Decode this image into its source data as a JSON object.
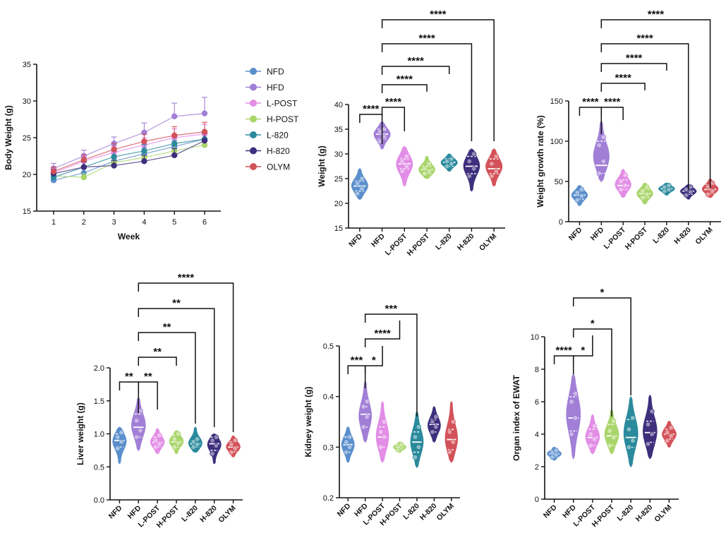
{
  "palette": {
    "NFD": "#5b8fcc",
    "HFD": "#a17fd6",
    "L-POST": "#e28de6",
    "H-POST": "#a9d56a",
    "L-820": "#2b8a9c",
    "H-820": "#3e2f7d",
    "OLYM": "#d3525a"
  },
  "chart_data": [
    {
      "id": "body-weight",
      "type": "line",
      "title": "",
      "xlabel": "Week",
      "ylabel": "Body Weight (g)",
      "x": [
        1,
        2,
        3,
        4,
        5,
        6
      ],
      "xticks": [
        "1",
        "2",
        "3",
        "4",
        "5",
        "6"
      ],
      "ylim": [
        15,
        35
      ],
      "yticks": [
        "15",
        "20",
        "25",
        "30",
        "35"
      ],
      "legend": [
        "NFD",
        "HFD",
        "L-POST",
        "H-POST",
        "L-820",
        "H-820",
        "OLYM"
      ],
      "series": [
        {
          "name": "NFD",
          "values": [
            19.2,
            20.2,
            21.8,
            22.8,
            23.8,
            24.8
          ],
          "err": [
            0.5,
            0.6,
            0.7,
            0.8,
            0.8,
            0.8
          ]
        },
        {
          "name": "HFD",
          "values": [
            20.8,
            22.5,
            24.2,
            25.7,
            27.9,
            28.3
          ],
          "err": [
            0.7,
            0.8,
            0.9,
            1.3,
            1.8,
            2.2
          ]
        },
        {
          "name": "L-POST",
          "values": [
            20.2,
            21.8,
            23.0,
            24.0,
            25.0,
            25.5
          ],
          "err": [
            0.6,
            0.7,
            0.8,
            1.0,
            1.2,
            1.3
          ]
        },
        {
          "name": "H-POST",
          "values": [
            19.8,
            19.6,
            21.6,
            22.3,
            23.2,
            24.0
          ],
          "err": [
            0.5,
            0.5,
            0.6,
            0.7,
            0.8,
            0.8
          ]
        },
        {
          "name": "L-820",
          "values": [
            19.6,
            21.0,
            22.4,
            23.2,
            24.2,
            24.8
          ],
          "err": [
            0.6,
            0.7,
            0.8,
            0.9,
            1.0,
            1.0
          ]
        },
        {
          "name": "H-820",
          "values": [
            20.1,
            21.0,
            21.2,
            21.8,
            22.6,
            24.6
          ],
          "err": [
            0.6,
            0.7,
            0.7,
            0.8,
            0.9,
            1.0
          ]
        },
        {
          "name": "OLYM",
          "values": [
            20.4,
            22.0,
            23.4,
            24.5,
            25.3,
            25.8
          ],
          "err": [
            0.6,
            0.7,
            0.8,
            1.0,
            1.2,
            1.3
          ]
        }
      ]
    },
    {
      "id": "weight",
      "type": "violin",
      "ylabel": "Weight (g)",
      "categories": [
        "NFD",
        "HFD",
        "L-POST",
        "H-POST",
        "L-820",
        "H-820",
        "OLYM"
      ],
      "ylim": [
        15,
        40
      ],
      "yticks": [
        "15",
        "20",
        "25",
        "30",
        "35",
        "40"
      ],
      "groups": [
        {
          "median": 23.5,
          "q1": 22.5,
          "q3": 24.5,
          "min": 20.8,
          "max": 27.0,
          "points": [
            22.0,
            23.0,
            24.0,
            25.0
          ]
        },
        {
          "median": 34.0,
          "q1": 33.0,
          "q3": 35.0,
          "min": 31.0,
          "max": 36.5,
          "points": [
            32.5,
            33.5,
            34.5,
            35.0
          ]
        },
        {
          "median": 28.0,
          "q1": 27.0,
          "q3": 29.0,
          "min": 23.5,
          "max": 31.5,
          "points": [
            26.5,
            27.5,
            28.5,
            29.5
          ]
        },
        {
          "median": 26.8,
          "q1": 26.0,
          "q3": 27.5,
          "min": 25.0,
          "max": 29.5,
          "points": [
            26.0,
            26.5,
            27.0,
            28.0
          ]
        },
        {
          "median": 28.3,
          "q1": 27.5,
          "q3": 29.0,
          "min": 26.5,
          "max": 30.0,
          "points": [
            27.5,
            28.0,
            28.5,
            29.0
          ]
        },
        {
          "median": 27.5,
          "q1": 26.0,
          "q3": 29.5,
          "min": 22.5,
          "max": 31.0,
          "points": [
            25.5,
            27.0,
            28.5,
            30.0
          ]
        },
        {
          "median": 27.0,
          "q1": 26.0,
          "q3": 29.0,
          "min": 23.5,
          "max": 31.0,
          "points": [
            25.5,
            26.5,
            28.0,
            29.5
          ]
        }
      ],
      "comparisons": [
        {
          "a": 0,
          "b": 1,
          "label": "****"
        },
        {
          "a": 1,
          "b": 2,
          "label": "****"
        },
        {
          "a": 1,
          "b": 3,
          "label": "****"
        },
        {
          "a": 1,
          "b": 4,
          "label": "****"
        },
        {
          "a": 1,
          "b": 5,
          "label": "****"
        },
        {
          "a": 1,
          "b": 6,
          "label": "****"
        }
      ]
    },
    {
      "id": "weight-growth",
      "type": "violin",
      "ylabel": "Weight growth rate (%)",
      "categories": [
        "NFD",
        "HFD",
        "L-POST",
        "H-POST",
        "L-820",
        "H-820",
        "OLYM"
      ],
      "ylim": [
        0,
        150
      ],
      "yticks": [
        "0",
        "50",
        "100",
        "150"
      ],
      "groups": [
        {
          "median": 33,
          "q1": 28,
          "q3": 38,
          "min": 20,
          "max": 45,
          "points": [
            27,
            32,
            36,
            40
          ]
        },
        {
          "median": 70,
          "q1": 60,
          "q3": 100,
          "min": 50,
          "max": 125,
          "points": [
            60,
            75,
            95,
            105
          ]
        },
        {
          "median": 45,
          "q1": 40,
          "q3": 52,
          "min": 30,
          "max": 65,
          "points": [
            40,
            45,
            50,
            58
          ]
        },
        {
          "median": 35,
          "q1": 30,
          "q3": 40,
          "min": 22,
          "max": 48,
          "points": [
            30,
            34,
            38,
            43
          ]
        },
        {
          "median": 41,
          "q1": 38,
          "q3": 44,
          "min": 33,
          "max": 48,
          "points": [
            38,
            40,
            43,
            45
          ]
        },
        {
          "median": 38,
          "q1": 34,
          "q3": 42,
          "min": 28,
          "max": 46,
          "points": [
            33,
            37,
            40,
            43
          ]
        },
        {
          "median": 40,
          "q1": 35,
          "q3": 46,
          "min": 30,
          "max": 53,
          "points": [
            34,
            38,
            43,
            48
          ]
        }
      ],
      "comparisons": [
        {
          "a": 0,
          "b": 1,
          "label": "****"
        },
        {
          "a": 1,
          "b": 2,
          "label": "****"
        },
        {
          "a": 1,
          "b": 3,
          "label": "****"
        },
        {
          "a": 1,
          "b": 4,
          "label": "****"
        },
        {
          "a": 1,
          "b": 5,
          "label": "****"
        },
        {
          "a": 1,
          "b": 6,
          "label": "****"
        }
      ]
    },
    {
      "id": "liver-weight",
      "type": "violin",
      "ylabel": "Liver weight (g)",
      "categories": [
        "NFD",
        "HFD",
        "L-POST",
        "H-POST",
        "L-820",
        "H-820",
        "OLYM"
      ],
      "ylim": [
        0.0,
        2.0
      ],
      "yticks": [
        "0.0",
        "0.5",
        "1.0",
        "1.5",
        "2.0"
      ],
      "groups": [
        {
          "median": 0.9,
          "q1": 0.8,
          "q3": 1.0,
          "min": 0.55,
          "max": 1.1,
          "points": [
            0.78,
            0.88,
            0.95,
            1.02
          ]
        },
        {
          "median": 1.1,
          "q1": 0.95,
          "q3": 1.3,
          "min": 0.75,
          "max": 1.55,
          "points": [
            0.95,
            1.05,
            1.2,
            1.35
          ]
        },
        {
          "median": 0.87,
          "q1": 0.8,
          "q3": 0.95,
          "min": 0.7,
          "max": 1.08,
          "points": [
            0.8,
            0.85,
            0.9,
            0.98
          ]
        },
        {
          "median": 0.88,
          "q1": 0.8,
          "q3": 0.98,
          "min": 0.7,
          "max": 1.05,
          "points": [
            0.8,
            0.86,
            0.92,
            1.0
          ]
        },
        {
          "median": 0.85,
          "q1": 0.8,
          "q3": 0.9,
          "min": 0.72,
          "max": 1.1,
          "points": [
            0.8,
            0.84,
            0.88,
            0.92
          ]
        },
        {
          "median": 0.85,
          "q1": 0.75,
          "q3": 0.95,
          "min": 0.55,
          "max": 1.0,
          "points": [
            0.7,
            0.82,
            0.9,
            0.95
          ]
        },
        {
          "median": 0.8,
          "q1": 0.73,
          "q3": 0.88,
          "min": 0.65,
          "max": 0.97,
          "points": [
            0.72,
            0.78,
            0.84,
            0.9
          ]
        }
      ],
      "comparisons": [
        {
          "a": 0,
          "b": 1,
          "label": "**"
        },
        {
          "a": 1,
          "b": 2,
          "label": "**"
        },
        {
          "a": 1,
          "b": 3,
          "label": "**"
        },
        {
          "a": 1,
          "b": 4,
          "label": "**"
        },
        {
          "a": 1,
          "b": 5,
          "label": "**"
        },
        {
          "a": 1,
          "b": 6,
          "label": "****"
        }
      ]
    },
    {
      "id": "kidney-weight",
      "type": "violin",
      "ylabel": "Kidney weight (g)",
      "categories": [
        "NFD",
        "HFD",
        "L-POST",
        "H-POST",
        "L-820",
        "H-820",
        "OLYM"
      ],
      "ylim": [
        0.2,
        0.5
      ],
      "yticks": [
        "0.2",
        "0.3",
        "0.4",
        "0.5"
      ],
      "groups": [
        {
          "median": 0.305,
          "q1": 0.29,
          "q3": 0.32,
          "min": 0.27,
          "max": 0.34,
          "points": [
            0.29,
            0.3,
            0.31,
            0.32
          ]
        },
        {
          "median": 0.365,
          "q1": 0.34,
          "q3": 0.38,
          "min": 0.31,
          "max": 0.43,
          "points": [
            0.34,
            0.36,
            0.38,
            0.39
          ]
        },
        {
          "median": 0.32,
          "q1": 0.3,
          "q3": 0.34,
          "min": 0.27,
          "max": 0.39,
          "points": [
            0.3,
            0.32,
            0.33,
            0.35
          ]
        },
        {
          "median": 0.3,
          "q1": 0.295,
          "q3": 0.305,
          "min": 0.29,
          "max": 0.31,
          "points": [
            0.295,
            0.3,
            0.3,
            0.305
          ]
        },
        {
          "median": 0.31,
          "q1": 0.29,
          "q3": 0.33,
          "min": 0.26,
          "max": 0.37,
          "points": [
            0.28,
            0.3,
            0.32,
            0.34
          ]
        },
        {
          "median": 0.345,
          "q1": 0.33,
          "q3": 0.355,
          "min": 0.31,
          "max": 0.38,
          "points": [
            0.33,
            0.34,
            0.35,
            0.36
          ]
        },
        {
          "median": 0.315,
          "q1": 0.295,
          "q3": 0.335,
          "min": 0.27,
          "max": 0.39,
          "points": [
            0.29,
            0.31,
            0.33,
            0.35
          ]
        }
      ],
      "comparisons": [
        {
          "a": 0,
          "b": 1,
          "label": "***"
        },
        {
          "a": 1,
          "b": 2,
          "label": "*"
        },
        {
          "a": 1,
          "b": 3,
          "label": "****"
        },
        {
          "a": 1,
          "b": 4,
          "label": "***"
        }
      ]
    },
    {
      "id": "organ-index",
      "type": "violin",
      "ylabel": "Organ index of EWAT",
      "categories": [
        "NFD",
        "HFD",
        "L-POST",
        "H-POST",
        "L-820",
        "H-820",
        "OLYM"
      ],
      "ylim": [
        0,
        10
      ],
      "yticks": [
        "0",
        "2",
        "4",
        "6",
        "8",
        "10"
      ],
      "groups": [
        {
          "median": 2.8,
          "q1": 2.6,
          "q3": 3.0,
          "min": 2.4,
          "max": 3.2,
          "points": [
            2.6,
            2.75,
            2.85,
            3.0
          ]
        },
        {
          "median": 5.0,
          "q1": 4.2,
          "q3": 6.3,
          "min": 2.5,
          "max": 7.7,
          "points": [
            4.0,
            5.0,
            6.0,
            6.5
          ]
        },
        {
          "median": 3.8,
          "q1": 3.3,
          "q3": 4.3,
          "min": 2.8,
          "max": 5.2,
          "points": [
            3.3,
            3.7,
            4.0,
            4.5
          ]
        },
        {
          "median": 3.9,
          "q1": 3.3,
          "q3": 4.6,
          "min": 2.8,
          "max": 5.5,
          "points": [
            3.3,
            3.8,
            4.2,
            4.8
          ]
        },
        {
          "median": 3.8,
          "q1": 3.2,
          "q3": 4.9,
          "min": 2.0,
          "max": 6.3,
          "points": [
            3.2,
            3.6,
            4.3,
            5.0
          ]
        },
        {
          "median": 4.1,
          "q1": 3.5,
          "q3": 4.8,
          "min": 2.5,
          "max": 6.4,
          "points": [
            3.4,
            4.0,
            4.6,
            5.4
          ]
        },
        {
          "median": 4.0,
          "q1": 3.7,
          "q3": 4.3,
          "min": 3.2,
          "max": 4.8,
          "points": [
            3.6,
            3.9,
            4.1,
            4.4
          ]
        }
      ],
      "comparisons": [
        {
          "a": 0,
          "b": 1,
          "label": "****"
        },
        {
          "a": 1,
          "b": 2,
          "label": "*"
        },
        {
          "a": 1,
          "b": 3,
          "label": "*"
        },
        {
          "a": 1,
          "b": 4,
          "label": "*"
        }
      ]
    }
  ]
}
